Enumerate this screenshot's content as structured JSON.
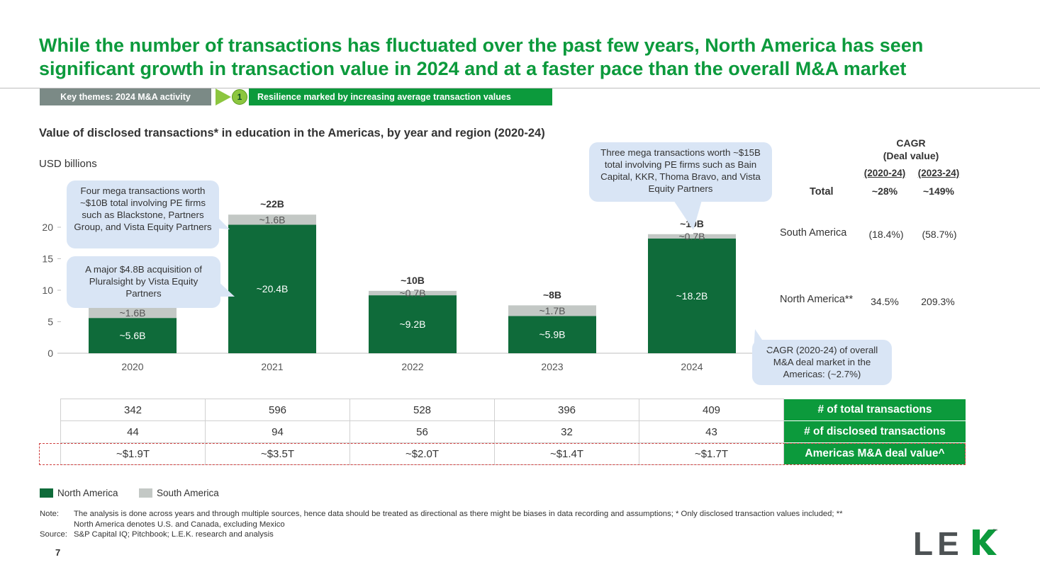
{
  "title": "While the number of transactions has fluctuated over the past few years, North America has seen significant growth in transaction value in 2024 and at a faster pace than the overall M&A market",
  "theme_bar": {
    "label": "Key themes: 2024 M&A activity",
    "number": "1",
    "text": "Resilience marked by increasing average transaction values"
  },
  "colors": {
    "brand_green": "#0c9a3c",
    "north_america": "#0f6b3a",
    "south_america": "#c3c8c5",
    "callout": "#d9e5f5",
    "theme_gray": "#7b8a86",
    "arrow": "#8cc63f"
  },
  "chart_data": {
    "type": "bar",
    "stacked": true,
    "title": "Value of disclosed transactions* in education in the Americas, by year and region (2020-24)",
    "units": "USD billions",
    "categories": [
      "2020",
      "2021",
      "2022",
      "2023",
      "2024"
    ],
    "series": [
      {
        "name": "North America",
        "values": [
          5.6,
          20.4,
          9.2,
          5.9,
          18.2
        ],
        "labels": [
          "~5.6B",
          "~20.4B",
          "~9.2B",
          "~5.9B",
          "~18.2B"
        ]
      },
      {
        "name": "South America",
        "values": [
          1.6,
          1.6,
          0.7,
          1.7,
          0.7
        ],
        "labels": [
          "~1.6B",
          "~1.6B",
          "~0.7B",
          "~1.7B",
          "~0.7B"
        ]
      }
    ],
    "totals": [
      "",
      "~22B",
      "~10B",
      "~8B",
      "~19B"
    ],
    "yticks": [
      "0",
      "5",
      "10",
      "15",
      "20"
    ],
    "ylim": [
      0,
      25
    ],
    "legend_position": "bottom-left",
    "grid": false
  },
  "callouts": {
    "c2020_top": "Four mega transactions worth ~$10B total involving PE firms such as Blackstone, Partners Group, and Vista Equity Partners",
    "c2020_bottom": "A major $4.8B acquisition of Pluralsight by Vista Equity Partners",
    "c2024": "Three mega transactions worth ~$15B total involving PE firms such as Bain Capital, KKR, Thoma Bravo, and Vista Equity Partners",
    "cagr_overall": "CAGR (2020-24) of overall M&A deal market in the Americas: (~2.7%)"
  },
  "cagr": {
    "title": "CAGR",
    "subtitle": "(Deal value)",
    "col1": "(2020-24)",
    "col2": "(2023-24)",
    "rows": [
      {
        "label": "Total",
        "v1": "~28%",
        "v2": "~149%"
      },
      {
        "label": "South America",
        "v1": "(18.4%)",
        "v2": "(58.7%)"
      },
      {
        "label": "North America**",
        "v1": "34.5%",
        "v2": "209.3%"
      }
    ]
  },
  "table": {
    "rows": [
      {
        "values": [
          "342",
          "596",
          "528",
          "396",
          "409"
        ],
        "label": "# of total transactions"
      },
      {
        "values": [
          "44",
          "94",
          "56",
          "32",
          "43"
        ],
        "label": "# of disclosed transactions"
      },
      {
        "values": [
          "~$1.9T",
          "~$3.5T",
          "~$2.0T",
          "~$1.4T",
          "~$1.7T"
        ],
        "label": "Americas M&A deal value^"
      }
    ]
  },
  "legend": {
    "north_america": "North America",
    "south_america": "South America"
  },
  "notes": {
    "note_label": "Note:",
    "note_text": "The analysis is done across years and through multiple sources, hence data should be treated as directional as there might be biases in data recording and assumptions; * Only disclosed transaction values included; ** North America denotes U.S. and Canada, excluding Mexico",
    "source_label": "Source:",
    "source_text": "S&P Capital IQ; Pitchbook; L.E.K. research and analysis"
  },
  "page_number": "7",
  "logo": {
    "text": "LEK",
    "tm": "™"
  }
}
